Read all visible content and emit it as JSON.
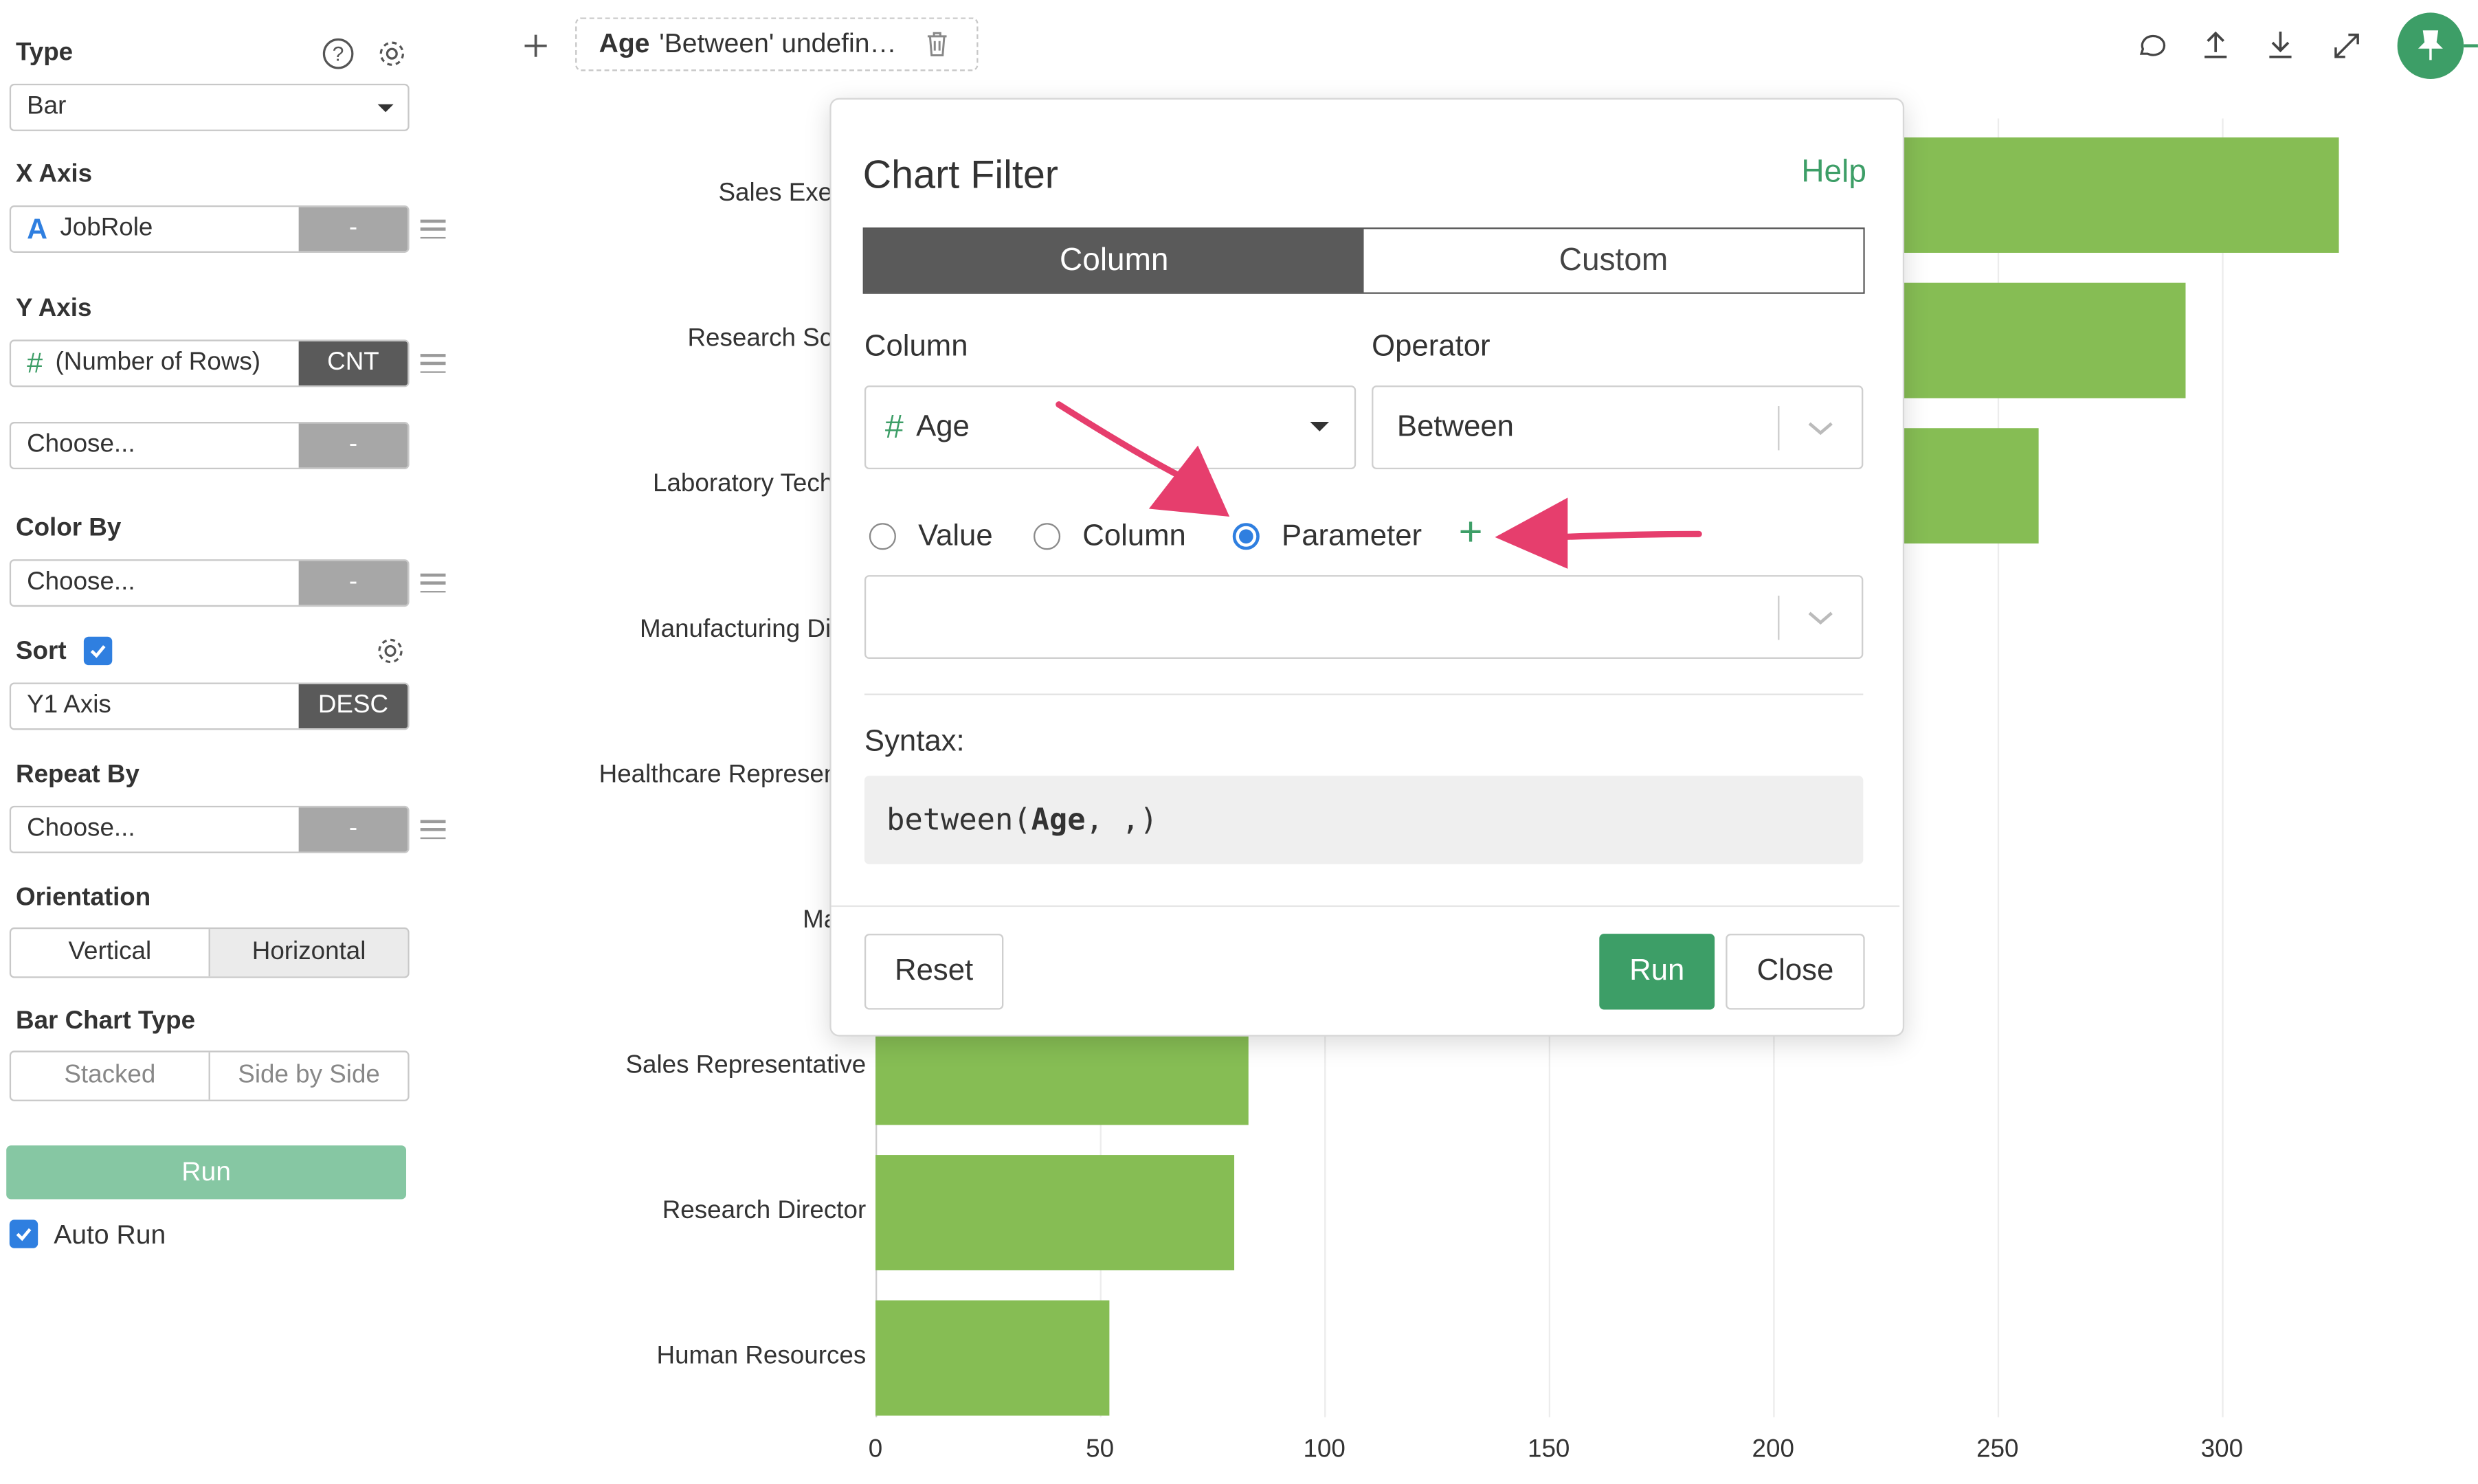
{
  "sidebar": {
    "type_label": "Type",
    "type_value": "Bar",
    "x_axis_label": "X Axis",
    "x_axis_field": "JobRole",
    "x_axis_field_type": "A",
    "x_axis_agg": "-",
    "y_axis_label": "Y Axis",
    "y_axis_field": "(Number of Rows)",
    "y_axis_field_type": "#",
    "y_axis_agg": "CNT",
    "y2_field": "Choose...",
    "y2_agg": "-",
    "color_by_label": "Color By",
    "color_by_field": "Choose...",
    "color_by_agg": "-",
    "sort_label": "Sort",
    "sort_field": "Y1 Axis",
    "sort_dir": "DESC",
    "repeat_by_label": "Repeat By",
    "repeat_by_field": "Choose...",
    "repeat_by_agg": "-",
    "orientation_label": "Orientation",
    "orientation_options": [
      "Vertical",
      "Horizontal"
    ],
    "orientation_selected": "Horizontal",
    "bar_type_label": "Bar Chart Type",
    "bar_type_options": [
      "Stacked",
      "Side by Side"
    ],
    "run_label": "Run",
    "auto_run_label": "Auto Run"
  },
  "filter_chip": {
    "column": "Age",
    "text": "'Between' undefin…"
  },
  "toolbar_icons": [
    "comment-icon",
    "upload-icon",
    "download-icon",
    "expand-icon",
    "pin-icon"
  ],
  "chart_data": {
    "type": "bar",
    "orientation": "horizontal",
    "categories": [
      "Sales Executive",
      "Research Scientist",
      "Laboratory Technician",
      "Manufacturing Director",
      "Healthcare Representative",
      "Manager",
      "Sales Representative",
      "Research Director",
      "Human Resources"
    ],
    "visible_labels": [
      "Sales Execut",
      "Research Scien",
      "Laboratory Technic",
      "Manufacturing Direc",
      "Healthcare Representat",
      "Mana",
      "Sales Representative",
      "Research Director",
      "Human Resources"
    ],
    "values": [
      326,
      292,
      259,
      null,
      null,
      null,
      83,
      80,
      52
    ],
    "xlim": [
      0,
      350
    ],
    "xticks": [
      "0",
      "50",
      "100",
      "150",
      "200",
      "250",
      "300"
    ],
    "grid": true,
    "color": "#86bd54"
  },
  "modal": {
    "title": "Chart Filter",
    "help": "Help",
    "tabs": [
      "Column",
      "Custom"
    ],
    "active_tab": "Column",
    "column_label": "Column",
    "column_value": "Age",
    "column_type": "#",
    "operator_label": "Operator",
    "operator_value": "Between",
    "radio_options": [
      "Value",
      "Column",
      "Parameter"
    ],
    "radio_selected": "Parameter",
    "add_symbol": "+",
    "parameter_value": "",
    "syntax_label": "Syntax:",
    "syntax_prefix": "between(",
    "syntax_column": "Age",
    "syntax_suffix": ", ,)",
    "reset_label": "Reset",
    "run_label": "Run",
    "close_label": "Close"
  },
  "colors": {
    "accent": "#3d9e67",
    "bar": "#86bd54",
    "arrow": "#e63e6d",
    "radio": "#2f7fe0"
  }
}
